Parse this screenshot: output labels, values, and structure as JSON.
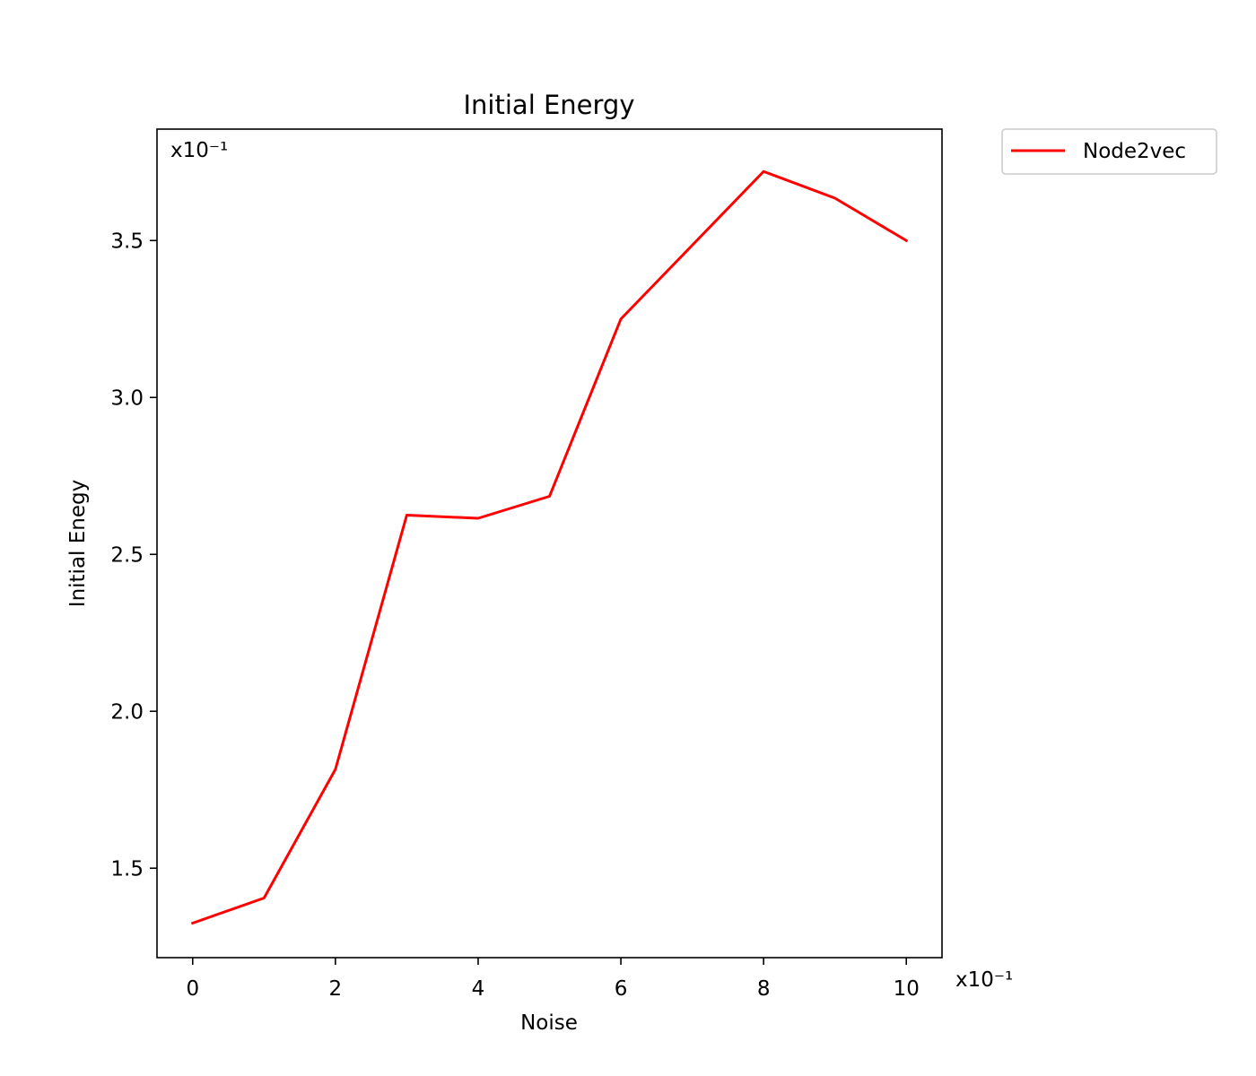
{
  "chart_data": {
    "type": "line",
    "title": "Initial Energy",
    "xlabel": "Noise",
    "ylabel": "Initial Enegy",
    "x_multiplier": "x10⁻¹",
    "y_multiplier": "x10⁻¹",
    "xlim": [
      -0.5,
      10.5
    ],
    "ylim": [
      1.215,
      3.855
    ],
    "x_ticks": [
      0,
      2,
      4,
      6,
      8,
      10
    ],
    "x_tick_labels": [
      "0",
      "2",
      "4",
      "6",
      "8",
      "10"
    ],
    "y_ticks": [
      1.5,
      2.0,
      2.5,
      3.0,
      3.5
    ],
    "y_tick_labels": [
      "1.5",
      "2.0",
      "2.5",
      "3.0",
      "3.5"
    ],
    "grid": false,
    "legend_position": "outside-top-right",
    "x": [
      0,
      1,
      2,
      3,
      4,
      5,
      6,
      7,
      8,
      9,
      10
    ],
    "series": [
      {
        "name": "Node2vec",
        "color": "#ff0000",
        "values": [
          1.325,
          1.405,
          1.815,
          2.625,
          2.615,
          2.685,
          3.25,
          3.485,
          3.72,
          3.635,
          3.5
        ]
      }
    ]
  }
}
